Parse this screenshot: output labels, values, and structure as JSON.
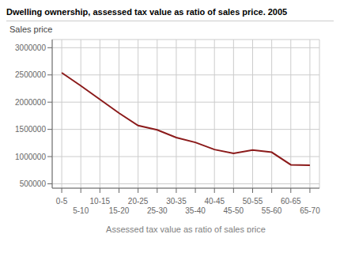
{
  "chart_data": {
    "type": "line",
    "title": "Dwelling ownership, assessed tax value as ratio of sales price. 2005",
    "xlabel": "Assessed tax value as ratio of sales price",
    "ylabel": "Sales price",
    "color": "#8B1A1A",
    "x": [
      0,
      1,
      2,
      3,
      4,
      5,
      6,
      7,
      8,
      9,
      10,
      11,
      12,
      13
    ],
    "values": [
      2540000,
      2300000,
      2050000,
      1800000,
      1570000,
      1490000,
      1350000,
      1260000,
      1130000,
      1060000,
      1120000,
      1080000,
      850000,
      840000
    ],
    "xlim": [
      -0.5,
      13.5
    ],
    "xticks": [
      {
        "value": 0,
        "label": "0-5"
      },
      {
        "value": 1,
        "label": "5-10"
      },
      {
        "value": 2,
        "label": "10-15"
      },
      {
        "value": 3,
        "label": "15-20"
      },
      {
        "value": 4,
        "label": "20-25"
      },
      {
        "value": 5,
        "label": "25-30"
      },
      {
        "value": 6,
        "label": "30-35"
      },
      {
        "value": 7,
        "label": "35-40"
      },
      {
        "value": 8,
        "label": "40-45"
      },
      {
        "value": 9,
        "label": "45-50"
      },
      {
        "value": 10,
        "label": "50-55"
      },
      {
        "value": 11,
        "label": "55-60"
      },
      {
        "value": 12,
        "label": "60-65"
      },
      {
        "value": 13,
        "label": "65-70"
      }
    ],
    "ylim": [
      420000,
      3150000
    ],
    "yticks": [
      500000,
      1000000,
      1500000,
      2000000,
      2500000,
      3000000
    ],
    "grid": true
  }
}
